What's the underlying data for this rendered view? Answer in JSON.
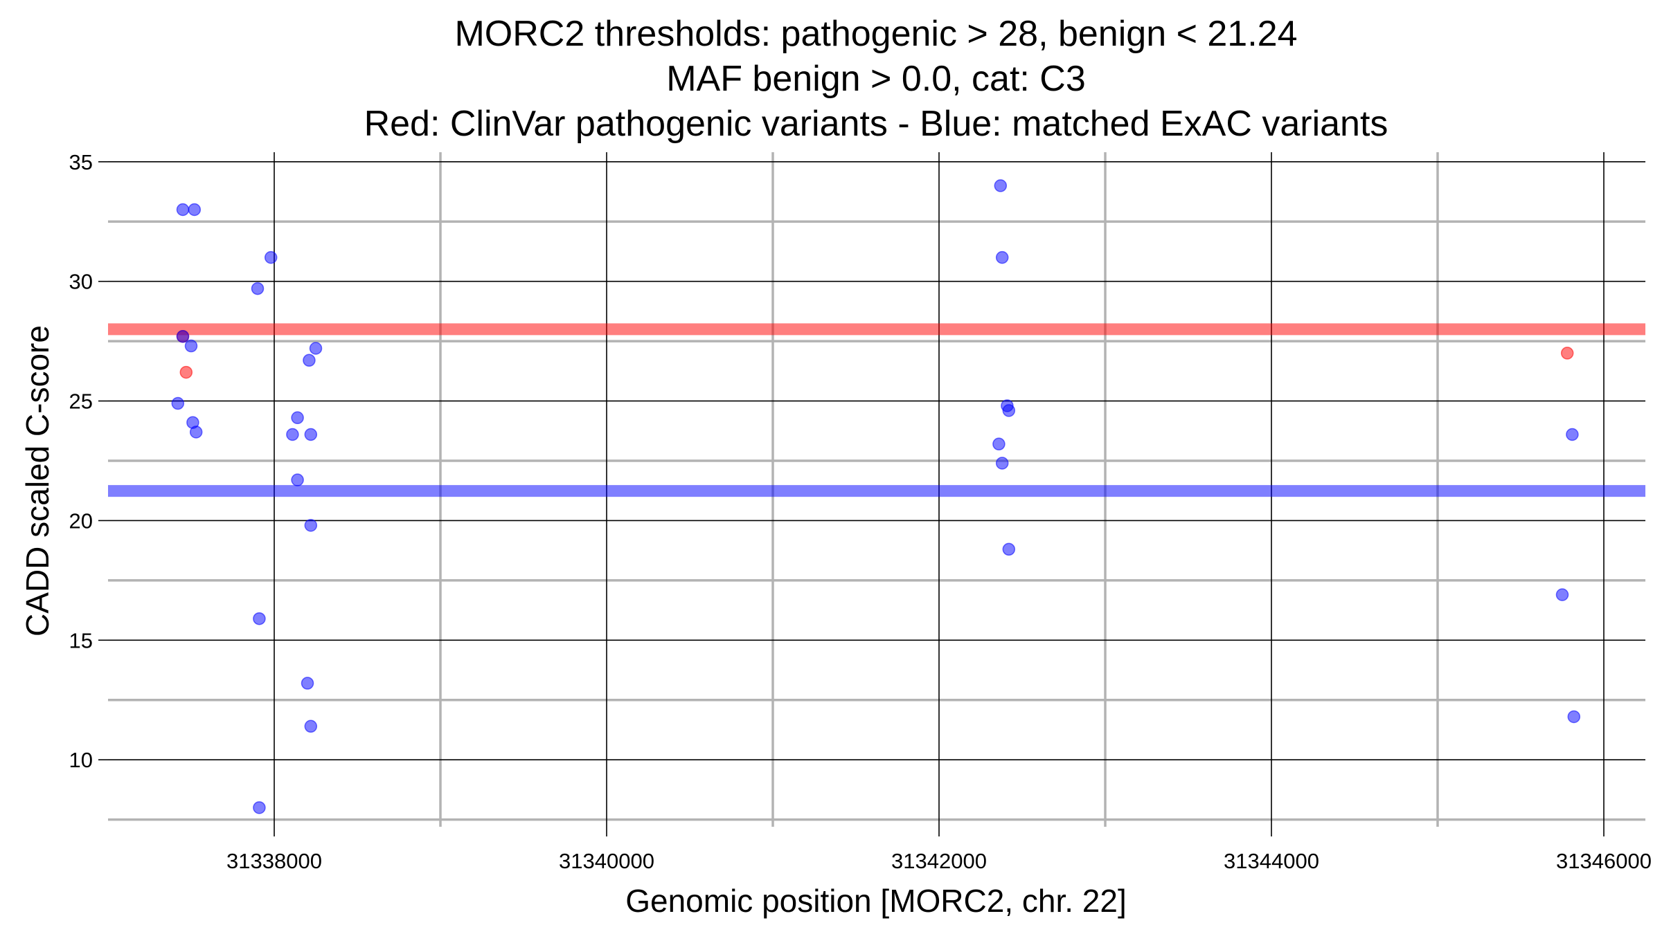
{
  "chart_data": {
    "type": "scatter",
    "title_lines": [
      "MORC2 thresholds: pathogenic > 28, benign < 21.24",
      "MAF benign > 0.0, cat: C3",
      "Red: ClinVar pathogenic variants - Blue: matched ExAC variants"
    ],
    "xlabel": "Genomic position [MORC2, chr. 22]",
    "ylabel": "CADD scaled C-score",
    "xlim": [
      31337000,
      31346250
    ],
    "ylim": [
      7.2,
      35.4
    ],
    "x_major_ticks": [
      31338000,
      31340000,
      31342000,
      31344000,
      31346000
    ],
    "x_minor_ticks": [
      31339000,
      31341000,
      31343000,
      31345000
    ],
    "x_tick_labels": [
      "31338000",
      "31340000",
      "31342000",
      "31344000",
      "31346000"
    ],
    "y_major_ticks": [
      10,
      15,
      20,
      25,
      30,
      35
    ],
    "y_minor_ticks": [
      7.5,
      12.5,
      17.5,
      22.5,
      27.5,
      32.5
    ],
    "y_tick_labels": [
      "10",
      "15",
      "20",
      "25",
      "30",
      "35"
    ],
    "grid": true,
    "thresholds": [
      {
        "name": "pathogenic",
        "value": 28,
        "color": "#ff0000"
      },
      {
        "name": "benign",
        "value": 21.24,
        "color": "#0000ff"
      }
    ],
    "series": [
      {
        "color": "#ff0000",
        "points": [
          {
            "x": 31337470,
            "y": 26.2
          },
          {
            "x": 31337450,
            "y": 27.7
          },
          {
            "x": 31345780,
            "y": 27.0
          }
        ]
      },
      {
        "color": "#0000ff",
        "points": [
          {
            "x": 31337450,
            "y": 33.0
          },
          {
            "x": 31337520,
            "y": 33.0
          },
          {
            "x": 31337450,
            "y": 27.7
          },
          {
            "x": 31337500,
            "y": 27.3
          },
          {
            "x": 31337420,
            "y": 24.9
          },
          {
            "x": 31337510,
            "y": 24.1
          },
          {
            "x": 31337530,
            "y": 23.7
          },
          {
            "x": 31337980,
            "y": 31.0
          },
          {
            "x": 31337900,
            "y": 29.7
          },
          {
            "x": 31337910,
            "y": 15.9
          },
          {
            "x": 31337910,
            "y": 8.0
          },
          {
            "x": 31338250,
            "y": 27.2
          },
          {
            "x": 31338210,
            "y": 26.7
          },
          {
            "x": 31338140,
            "y": 24.3
          },
          {
            "x": 31338110,
            "y": 23.6
          },
          {
            "x": 31338220,
            "y": 23.6
          },
          {
            "x": 31338140,
            "y": 21.7
          },
          {
            "x": 31338220,
            "y": 19.8
          },
          {
            "x": 31338200,
            "y": 13.2
          },
          {
            "x": 31338220,
            "y": 11.4
          },
          {
            "x": 31342370,
            "y": 34.0
          },
          {
            "x": 31342380,
            "y": 31.0
          },
          {
            "x": 31342410,
            "y": 24.8
          },
          {
            "x": 31342420,
            "y": 24.6
          },
          {
            "x": 31342360,
            "y": 23.2
          },
          {
            "x": 31342380,
            "y": 22.4
          },
          {
            "x": 31342420,
            "y": 18.8
          },
          {
            "x": 31345810,
            "y": 23.6
          },
          {
            "x": 31345750,
            "y": 16.9
          },
          {
            "x": 31345820,
            "y": 11.8
          }
        ]
      }
    ]
  }
}
